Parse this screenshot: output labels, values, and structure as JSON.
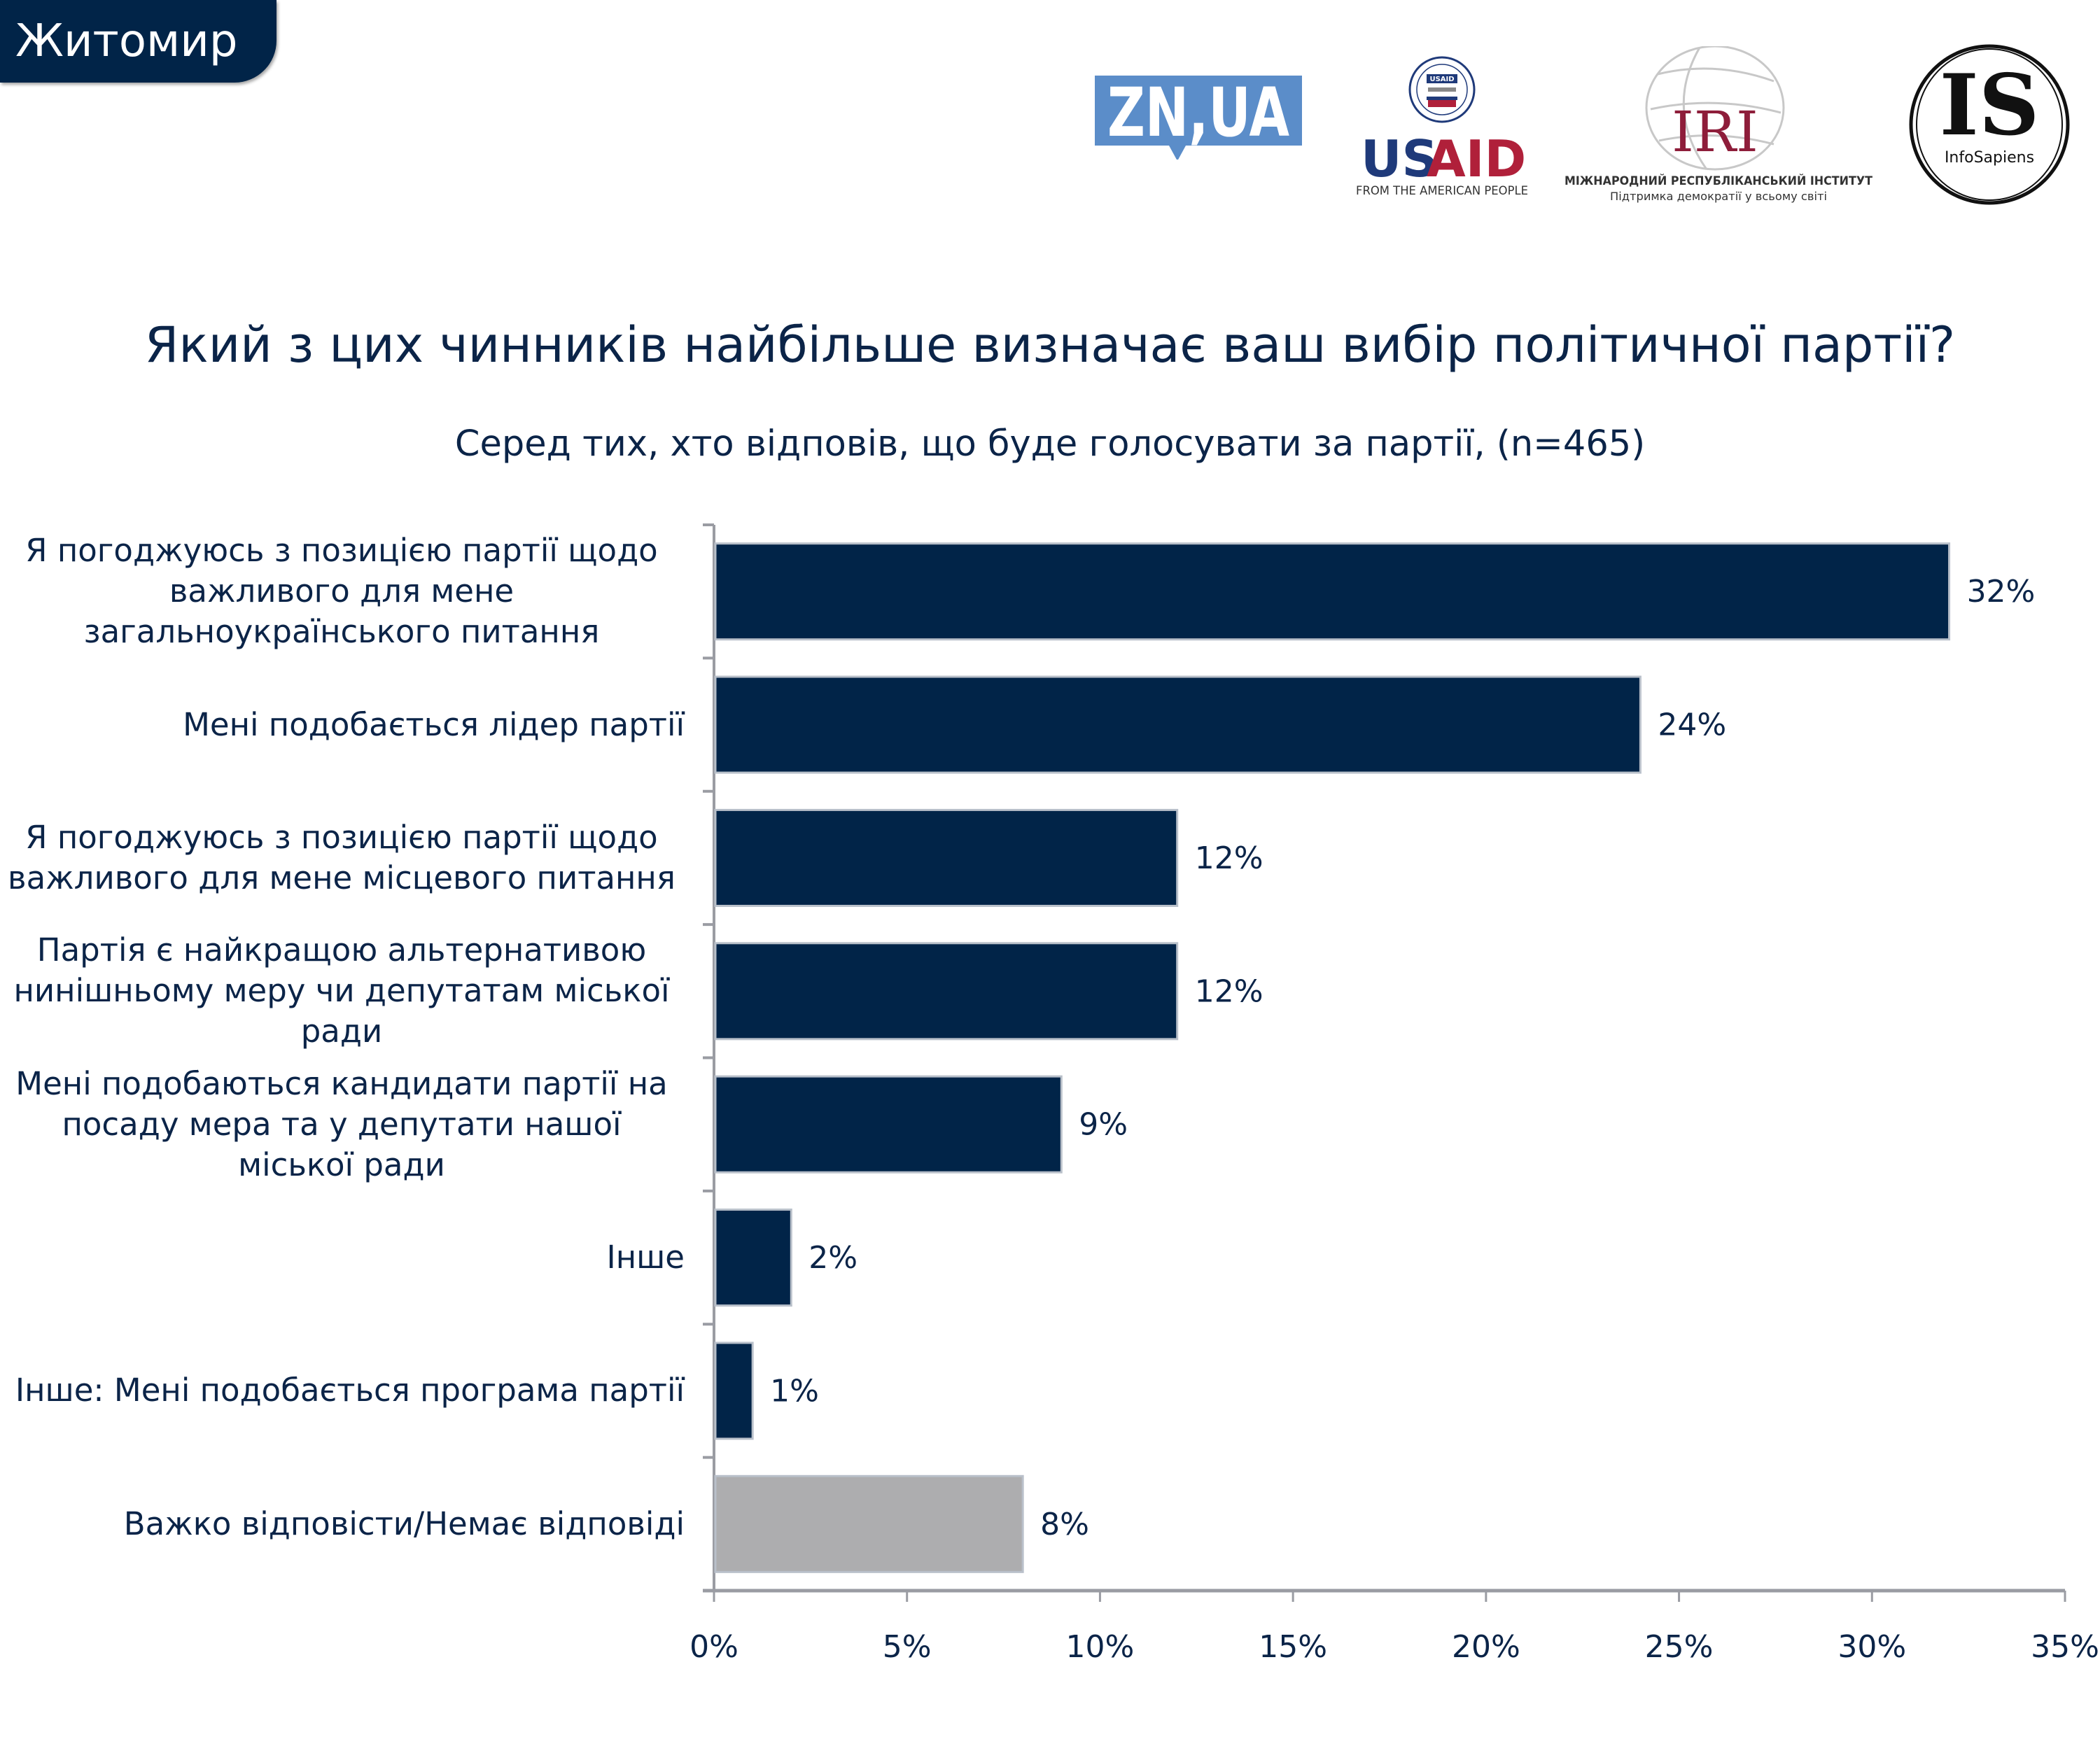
{
  "header": {
    "city": "Житомир",
    "logos": {
      "znua": {
        "text": "ZN,UA",
        "color": "#5b8dc9"
      },
      "usaid": {
        "seal_text": "USAID",
        "us": "US",
        "aid": "AID",
        "tagline": "FROM THE AMERICAN PEOPLE",
        "blue": "#1f3a7a",
        "red": "#b0203a"
      },
      "iri": {
        "mark": "IRI",
        "name": "МІЖНАРОДНИЙ РЕСПУБЛІКАНСЬКИЙ ІНСТИТУТ",
        "tagline": "Підтримка демократії у всьому світі",
        "color": "#8e1d3a"
      },
      "infosapiens": {
        "mark": "IS",
        "name": "InfoSapiens"
      }
    }
  },
  "chart_data": {
    "type": "bar",
    "orientation": "horizontal",
    "title": "Який з цих чинників найбільше визначає ваш вибір політичної партії?",
    "subtitle": "Серед тих, хто відповів, що буде голосувати за партії, (n=465)",
    "categories": [
      "Я погоджуюсь з позицією партії щодо важливого для мене загальноукраїнського питання",
      "Мені подобається лідер партії",
      "Я погоджуюсь з позицією партії щодо важливого для мене місцевого питання",
      "Партія є найкращою альтернативою нинішньому меру чи депутатам міської ради",
      "Мені подобаються кандидати партії на посаду мера та у депутати нашої міської ради",
      "Інше",
      "Інше: Мені подобається програма партії",
      "Важко відповісти/Немає відповіді"
    ],
    "category_lines": [
      [
        "Я погоджуюсь з позицією партії щодо",
        "важливого для мене",
        "загальноукраїнського питання"
      ],
      [
        "Мені подобається лідер партії"
      ],
      [
        "Я погоджуюсь з позицією партії щодо",
        "важливого для мене місцевого питання"
      ],
      [
        "Партія є найкращою альтернативою",
        "нинішньому меру чи депутатам міської",
        "ради"
      ],
      [
        "Мені подобаються кандидати партії на",
        "посаду мера та у депутати нашої",
        "міської ради"
      ],
      [
        "Інше"
      ],
      [
        "Інше: Мені подобається програма партії"
      ],
      [
        "Важко відповісти/Немає відповіді"
      ]
    ],
    "values": [
      32,
      24,
      12,
      12,
      9,
      2,
      1,
      8
    ],
    "value_labels": [
      "32%",
      "24%",
      "12%",
      "12%",
      "9%",
      "2%",
      "1%",
      "8%"
    ],
    "bar_colors": [
      "#012448",
      "#012448",
      "#012448",
      "#012448",
      "#012448",
      "#012448",
      "#012448",
      "#adadaf"
    ],
    "xlabel": "",
    "ylabel": "",
    "xlim": [
      0,
      35
    ],
    "xticks": [
      0,
      5,
      10,
      15,
      20,
      25,
      30,
      35
    ],
    "xtick_labels": [
      "0%",
      "5%",
      "10%",
      "15%",
      "20%",
      "25%",
      "30%",
      "35%"
    ],
    "grid": false,
    "legend": "none"
  }
}
